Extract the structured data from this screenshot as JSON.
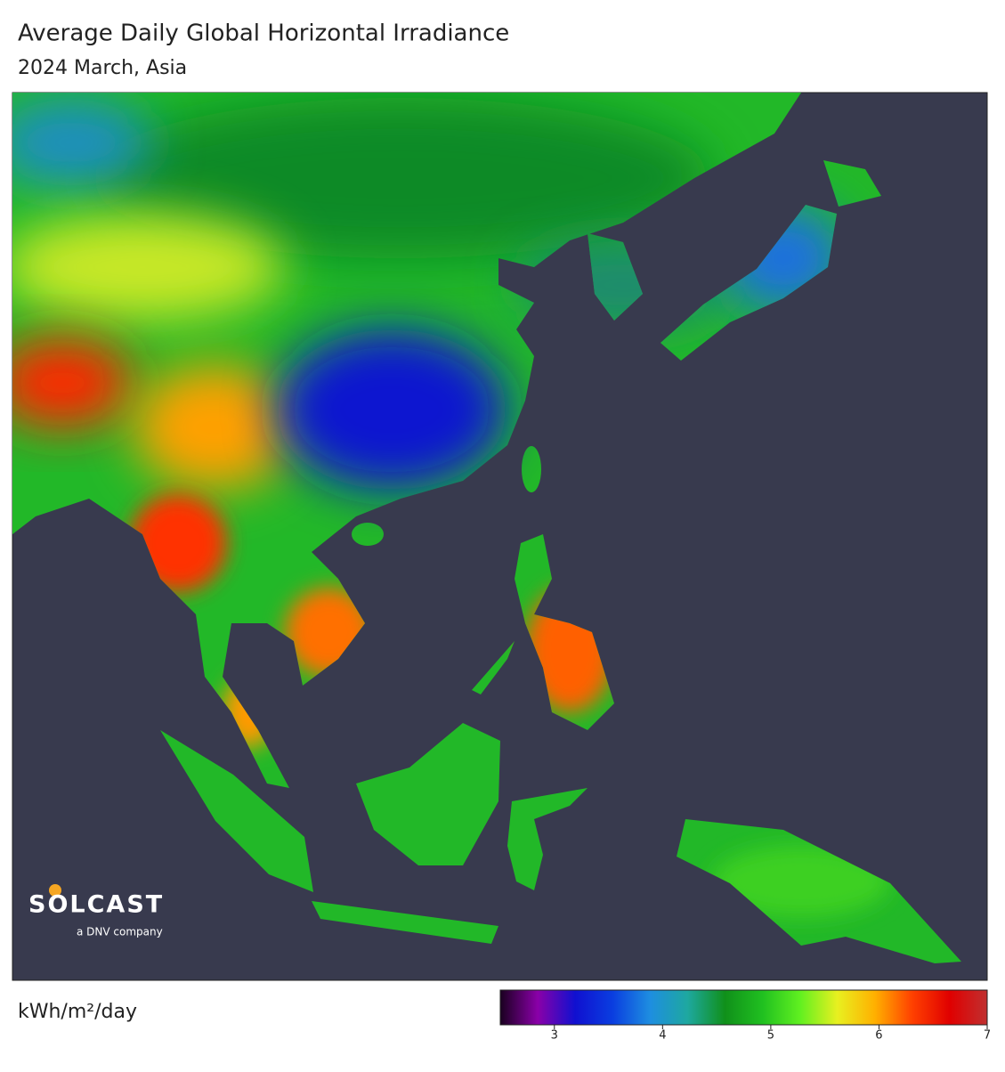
{
  "header": {
    "title": "Average Daily Global Horizontal Irradiance",
    "subtitle": "2024 March, Asia"
  },
  "logo": {
    "name": "SOLCAST",
    "tagline": "a DNV company"
  },
  "legend": {
    "unit": "kWh/m²/day",
    "range": [
      2.5,
      7
    ],
    "ticks": [
      3,
      4,
      5,
      6,
      7
    ],
    "colors": [
      "#1a0020",
      "#8a00a8",
      "#1010d0",
      "#0a3ee0",
      "#1e8ee0",
      "#1ea8a0",
      "#10901a",
      "#20c020",
      "#60f020",
      "#e8f020",
      "#ffb000",
      "#ff4000",
      "#e00000",
      "#c03030"
    ]
  }
}
